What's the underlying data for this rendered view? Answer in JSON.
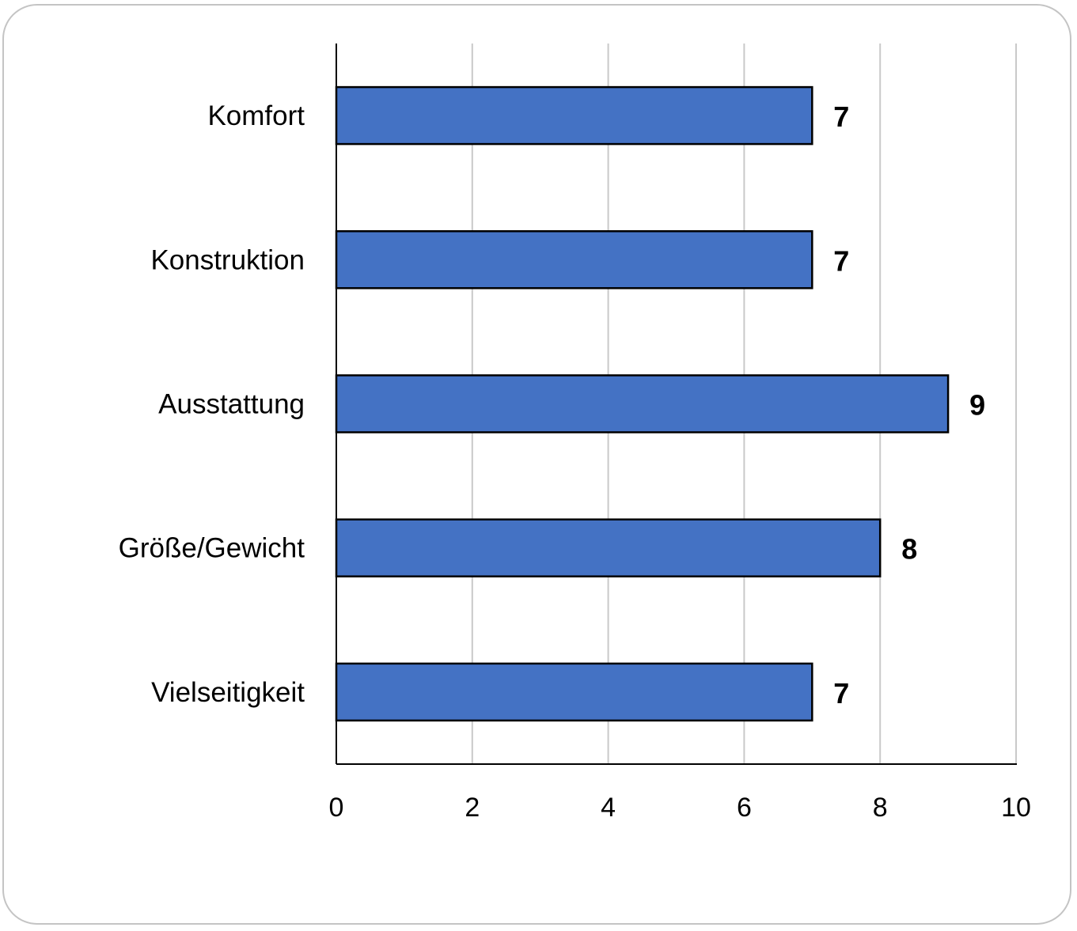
{
  "chart_data": {
    "type": "bar",
    "orientation": "horizontal",
    "categories": [
      "Komfort",
      "Konstruktion",
      "Ausstattung",
      "Größe/Gewicht",
      "Vielseitigkeit"
    ],
    "values": [
      7,
      7,
      9,
      8,
      7
    ],
    "data_labels": [
      "7",
      "7",
      "9",
      "8",
      "7"
    ],
    "xlim": [
      0,
      10
    ],
    "x_ticks": [
      0,
      2,
      4,
      6,
      8,
      10
    ],
    "x_tick_labels": [
      "0",
      "2",
      "4",
      "6",
      "8",
      "10"
    ],
    "title": "",
    "xlabel": "",
    "ylabel": "",
    "grid": "vertical",
    "legend": "none",
    "colors": {
      "bar": "#4472C4",
      "bar_border": "#000000",
      "grid": "#c9c9c9",
      "axis": "#000000"
    }
  }
}
